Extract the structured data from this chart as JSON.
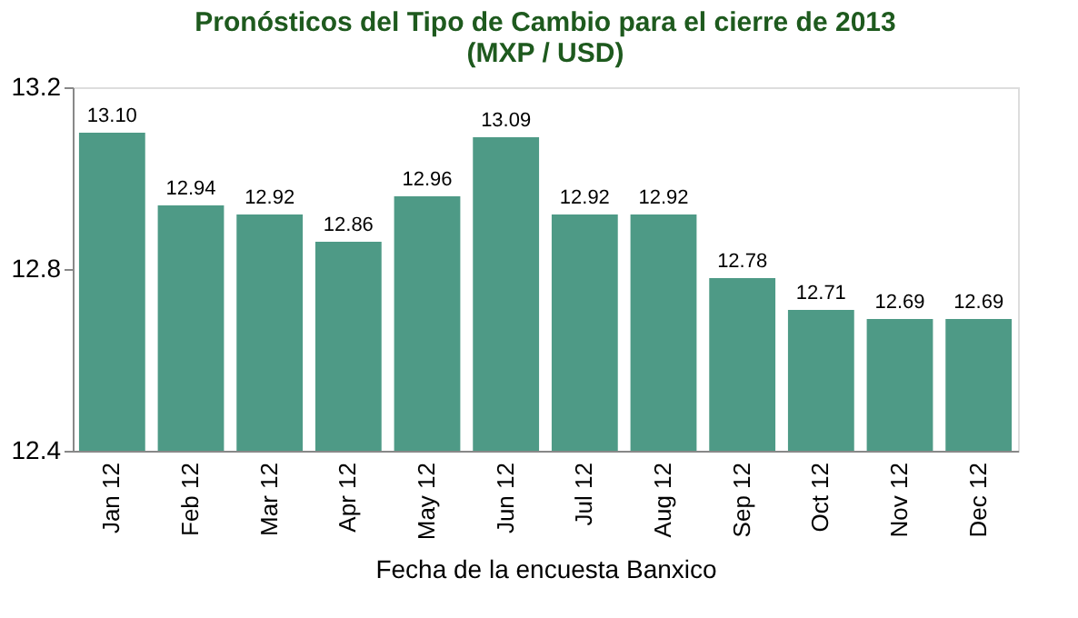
{
  "chart_data": {
    "type": "bar",
    "title": [
      "Pronósticos del Tipo de Cambio para el cierre de  2013",
      "(MXP / USD)"
    ],
    "xlabel": "Fecha de la encuesta Banxico",
    "categories": [
      "Jan 12",
      "Feb 12",
      "Mar 12",
      "Apr 12",
      "May 12",
      "Jun 12",
      "Jul 12",
      "Aug 12",
      "Sep 12",
      "Oct 12",
      "Nov 12",
      "Dec 12"
    ],
    "values": [
      13.1,
      12.94,
      12.92,
      12.86,
      12.96,
      13.09,
      12.92,
      12.92,
      12.78,
      12.71,
      12.69,
      12.69
    ],
    "value_labels": [
      "13.10",
      "12.94",
      "12.92",
      "12.86",
      "12.96",
      "13.09",
      "12.92",
      "12.92",
      "12.78",
      "12.71",
      "12.69",
      "12.69"
    ],
    "color": "#4e9a86",
    "ylim": [
      12.4,
      13.2
    ],
    "yticks": [
      12.4,
      12.8,
      13.2
    ],
    "grid": false
  }
}
